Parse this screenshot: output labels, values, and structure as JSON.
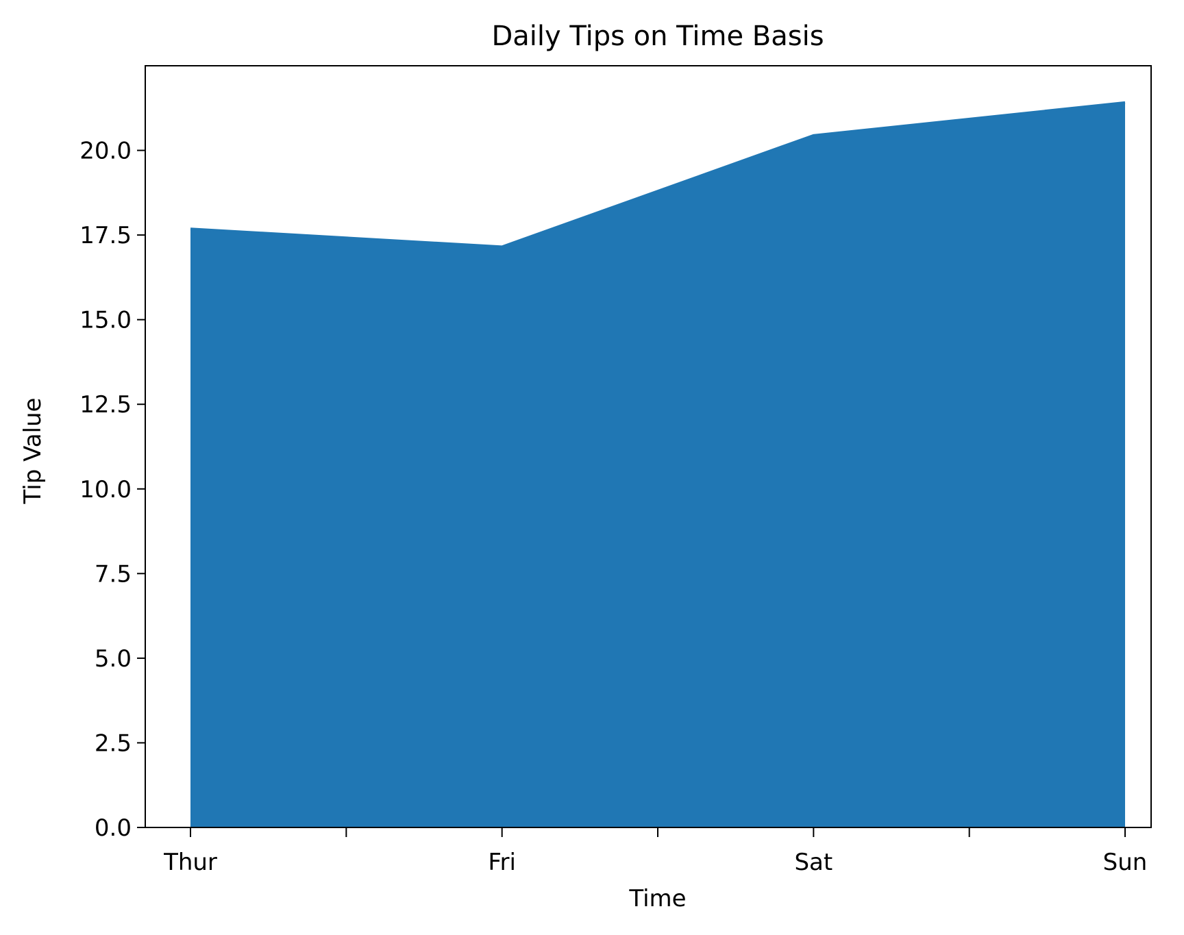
{
  "chart_data": {
    "type": "area",
    "title": "Daily Tips on Time Basis",
    "xlabel": "Time",
    "ylabel": "Tip Value",
    "categories": [
      "Thur",
      "Fri",
      "Sat",
      "Sun"
    ],
    "values": [
      17.68,
      17.15,
      20.44,
      21.41
    ],
    "ylim": [
      0,
      22.5
    ],
    "yticks": [
      "0.0",
      "2.5",
      "5.0",
      "7.5",
      "10.0",
      "12.5",
      "15.0",
      "17.5",
      "20.0"
    ],
    "grid": false,
    "fill_color": "#2077b4",
    "axis_color": "#000000"
  }
}
